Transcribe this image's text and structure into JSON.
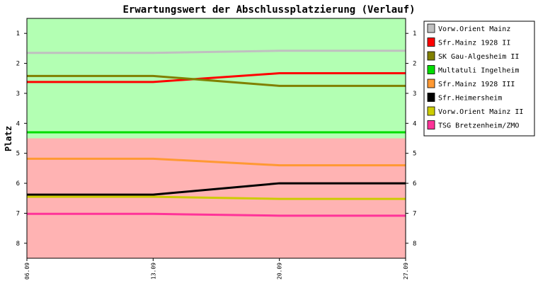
{
  "chart_data": {
    "type": "line",
    "title": "Erwartungswert der Abschlussplatzierung (Verlauf)",
    "xlabel": "",
    "ylabel": "Platz",
    "x": [
      "06.09",
      "13.09",
      "20.09",
      "27.09"
    ],
    "ylim": [
      0.5,
      8.5
    ],
    "y_inverted": true,
    "yticks": [
      1,
      2,
      3,
      4,
      5,
      6,
      7,
      8
    ],
    "grid": false,
    "legend_position": "right",
    "bands": [
      {
        "from": 0.5,
        "to": 4.5,
        "color": "#b3ffb3"
      },
      {
        "from": 4.5,
        "to": 8.5,
        "color": "#ffb3b3"
      }
    ],
    "series": [
      {
        "name": "Vorw.Orient Mainz",
        "color": "#c0c0c0",
        "values": [
          1.65,
          1.65,
          1.58,
          1.58
        ]
      },
      {
        "name": "Sfr.Mainz 1928   II",
        "color": "#ff0000",
        "values": [
          2.62,
          2.62,
          2.33,
          2.33
        ]
      },
      {
        "name": "SK Gau-Algesheim   II",
        "color": "#808000",
        "values": [
          2.42,
          2.42,
          2.75,
          2.75
        ]
      },
      {
        "name": "Multatuli Ingelheim",
        "color": "#00dd00",
        "values": [
          4.3,
          4.3,
          4.3,
          4.3
        ]
      },
      {
        "name": "Sfr.Mainz 1928   III",
        "color": "#ff9933",
        "values": [
          5.18,
          5.18,
          5.4,
          5.4
        ]
      },
      {
        "name": "Sfr.Heimersheim",
        "color": "#000000",
        "values": [
          6.38,
          6.38,
          6.0,
          6.0
        ]
      },
      {
        "name": "Vorw.Orient Mainz   II",
        "color": "#cccc00",
        "values": [
          6.45,
          6.45,
          6.52,
          6.52
        ]
      },
      {
        "name": "TSG Bretzenheim/ZMO",
        "color": "#ff3399",
        "values": [
          7.02,
          7.02,
          7.08,
          7.08
        ]
      }
    ]
  }
}
